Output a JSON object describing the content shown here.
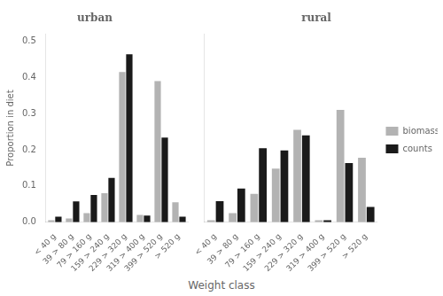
{
  "chart_data": [
    {
      "type": "bar",
      "title": "urban",
      "categories": [
        "< 40 g",
        "39 > 80 g",
        "79 > 160 g",
        "159 > 240 g",
        "229 > 320 g",
        "319 > 400 g",
        "399 > 520 g",
        "> 520 g"
      ],
      "series": [
        {
          "name": "biomass",
          "color": "#b3b3b3",
          "values": [
            0.005,
            0.01,
            0.025,
            0.08,
            0.415,
            0.02,
            0.39,
            0.055
          ]
        },
        {
          "name": "counts",
          "color": "#1a1a1a",
          "values": [
            0.015,
            0.057,
            0.075,
            0.122,
            0.464,
            0.018,
            0.234,
            0.015
          ]
        }
      ],
      "ylabel": "Proportion in diet",
      "xlabel": "Weight class",
      "ylim": [
        0.0,
        0.52
      ],
      "yticks": [
        {
          "value": 0.0,
          "label": "0.0"
        },
        0.1,
        0.2,
        0.3,
        0.4,
        0.5
      ],
      "grid": false
    },
    {
      "type": "bar",
      "title": "rural",
      "categories": [
        "< 40 g",
        "39 > 80 g",
        "79 > 160 g",
        "159 > 240 g",
        "229 > 320 g",
        "319 > 400 g",
        "399 > 520 g",
        "> 520 g"
      ],
      "series": [
        {
          "name": "biomass",
          "color": "#b3b3b3",
          "values": [
            0.005,
            0.025,
            0.078,
            0.148,
            0.255,
            0.005,
            0.31,
            0.178
          ]
        },
        {
          "name": "counts",
          "color": "#1a1a1a",
          "values": [
            0.058,
            0.093,
            0.204,
            0.198,
            0.24,
            0.005,
            0.163,
            0.042
          ]
        }
      ],
      "ylim": [
        0.0,
        0.52
      ],
      "yticks": [
        {
          "value": 0.0,
          "label": "0.0"
        },
        0.1,
        0.2,
        0.3,
        0.4,
        0.5
      ],
      "grid": false,
      "legend": "right",
      "tick_labels": "x"
    }
  ]
}
